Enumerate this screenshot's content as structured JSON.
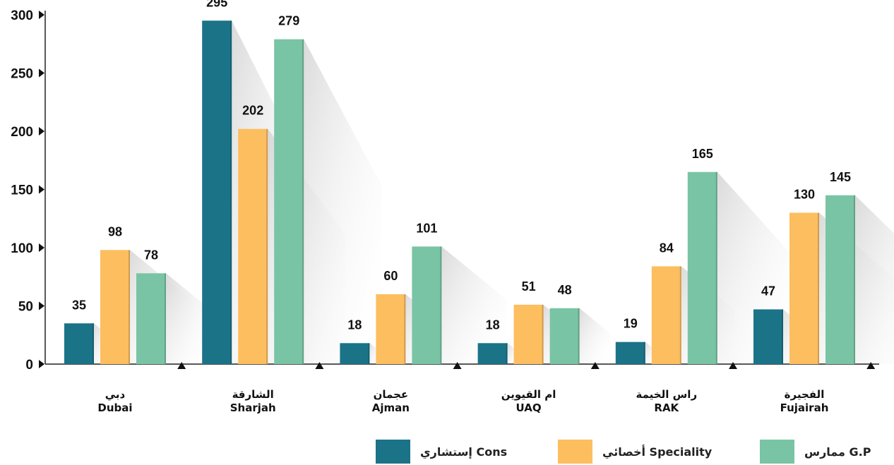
{
  "chart_data": {
    "type": "bar",
    "categories": [
      {
        "ar": "دبي",
        "en": "Dubai"
      },
      {
        "ar": "الشارقة",
        "en": "Sharjah"
      },
      {
        "ar": "عجمان",
        "en": "Ajman"
      },
      {
        "ar": "ام القيوين",
        "en": "UAQ"
      },
      {
        "ar": "راس الخيمة",
        "en": "RAK"
      },
      {
        "ar": "الفجيرة",
        "en": "Fujairah"
      }
    ],
    "series": [
      {
        "name": "إستشاري Cons",
        "color": "#1b7388",
        "values": [
          35,
          295,
          18,
          18,
          19,
          47
        ]
      },
      {
        "name": "أخصائي Speciality",
        "color": "#fdbe5f",
        "values": [
          98,
          202,
          60,
          51,
          84,
          130
        ]
      },
      {
        "name": "ممارس G.P",
        "color": "#79c4a5",
        "values": [
          78,
          279,
          101,
          48,
          165,
          145
        ]
      }
    ],
    "ylim": [
      0,
      300
    ],
    "yticks": [
      0,
      50,
      100,
      150,
      200,
      250,
      300
    ],
    "data_labels": true,
    "legend_position": "bottom-right",
    "title": "",
    "xlabel": "",
    "ylabel": ""
  }
}
